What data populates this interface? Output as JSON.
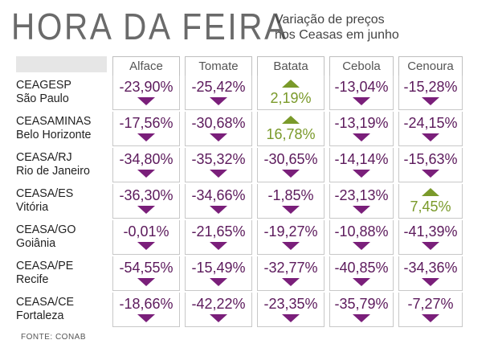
{
  "header": {
    "title": "HORA DA FEIRA",
    "subtitle_line1": "Variação de preços",
    "subtitle_line2": "nos Ceasas em junho"
  },
  "source": "FONTE: CONAB",
  "colors": {
    "down": "#7a1f7a",
    "up": "#7a9a2a",
    "title": "#6a6a6a"
  },
  "chart_data": {
    "type": "table",
    "title": "HORA DA FEIRA",
    "subtitle": "Variação de preços nos Ceasas em junho",
    "columns": [
      "Alface",
      "Tomate",
      "Batata",
      "Cebola",
      "Cenoura"
    ],
    "rows": [
      {
        "name": "CEAGESP",
        "city": "São Paulo",
        "labels": [
          "-23,90%",
          "-25,42%",
          "2,19%",
          "-13,04%",
          "-15,28%"
        ],
        "values": [
          -23.9,
          -25.42,
          2.19,
          -13.04,
          -15.28
        ]
      },
      {
        "name": "CEASAMINAS",
        "city": "Belo Horizonte",
        "labels": [
          "-17,56%",
          "-30,68%",
          "16,78%",
          "-13,19%",
          "-24,15%"
        ],
        "values": [
          -17.56,
          -30.68,
          16.78,
          -13.19,
          -24.15
        ]
      },
      {
        "name": "CEASA/RJ",
        "city": "Rio de Janeiro",
        "labels": [
          "-34,80%",
          "-35,32%",
          "-30,65%",
          "-14,14%",
          "-15,63%"
        ],
        "values": [
          -34.8,
          -35.32,
          -30.65,
          -14.14,
          -15.63
        ]
      },
      {
        "name": "CEASA/ES",
        "city": "Vitória",
        "labels": [
          "-36,30%",
          "-34,66%",
          "-1,85%",
          "-23,13%",
          "7,45%"
        ],
        "values": [
          -36.3,
          -34.66,
          -1.85,
          -23.13,
          7.45
        ]
      },
      {
        "name": "CEASA/GO",
        "city": "Goiânia",
        "labels": [
          "-0,01%",
          "-21,65%",
          "-19,27%",
          "-10,88%",
          "-41,39%"
        ],
        "values": [
          -0.01,
          -21.65,
          -19.27,
          -10.88,
          -41.39
        ]
      },
      {
        "name": "CEASA/PE",
        "city": "Recife",
        "labels": [
          "-54,55%",
          "-15,49%",
          "-32,77%",
          "-40,85%",
          "-34,36%"
        ],
        "values": [
          -54.55,
          -15.49,
          -32.77,
          -40.85,
          -34.36
        ]
      },
      {
        "name": "CEASA/CE",
        "city": "Fortaleza",
        "labels": [
          "-18,66%",
          "-42,22%",
          "-23,35%",
          "-35,79%",
          "-7,27%"
        ],
        "values": [
          -18.66,
          -42.22,
          -23.35,
          -35.79,
          -7.27
        ]
      }
    ]
  }
}
